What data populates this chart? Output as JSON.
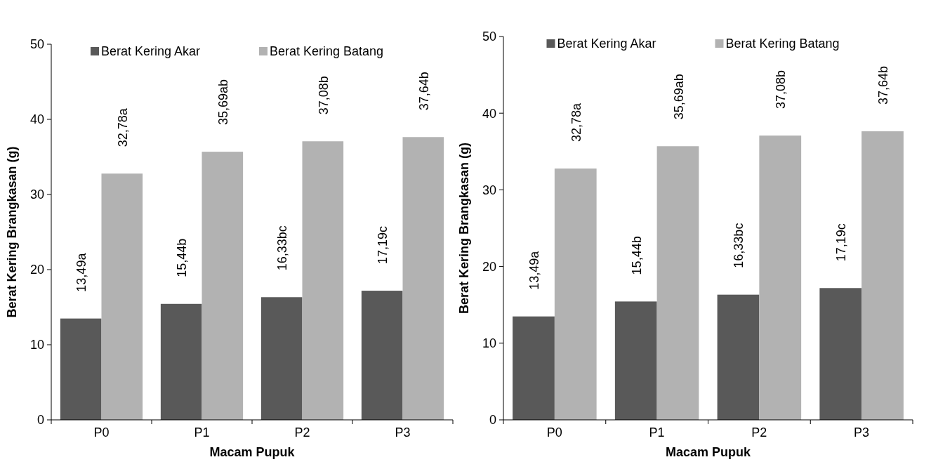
{
  "chart_data": [
    {
      "type": "bar",
      "xlabel": "Macam Pupuk",
      "ylabel": "Berat Kering Brangkasan (g)",
      "categories": [
        "P0",
        "P1",
        "P2",
        "P3"
      ],
      "ylim": [
        0,
        50
      ],
      "yticks": [
        0,
        10,
        20,
        30,
        40,
        50
      ],
      "grid": false,
      "legend": "top",
      "series": [
        {
          "name": "Berat Kering Akar",
          "color": "#595959",
          "values": [
            13.49,
            15.44,
            16.33,
            17.19
          ],
          "value_labels": [
            "13,49a",
            "15,44b",
            "16,33bc",
            "17,19c"
          ]
        },
        {
          "name": "Berat Kering Batang",
          "color": "#b2b2b2",
          "values": [
            32.78,
            35.69,
            37.08,
            37.64
          ],
          "value_labels": [
            "32,78a",
            "35,69ab",
            "37,08b",
            "37,64b"
          ]
        }
      ]
    },
    {
      "type": "bar",
      "xlabel": "Macam Pupuk",
      "ylabel": "Berat Kering Brangkasan (g)",
      "categories": [
        "P0",
        "P1",
        "P2",
        "P3"
      ],
      "ylim": [
        0,
        50
      ],
      "yticks": [
        0,
        10,
        20,
        30,
        40,
        50
      ],
      "grid": false,
      "legend": "top",
      "series": [
        {
          "name": "Berat Kering Akar",
          "color": "#595959",
          "values": [
            13.49,
            15.44,
            16.33,
            17.19
          ],
          "value_labels": [
            "13,49a",
            "15,44b",
            "16,33bc",
            "17,19c"
          ]
        },
        {
          "name": "Berat Kering Batang",
          "color": "#b2b2b2",
          "values": [
            32.78,
            35.69,
            37.08,
            37.64
          ],
          "value_labels": [
            "32,78a",
            "35,69ab",
            "37,08b",
            "37,64b"
          ]
        }
      ]
    }
  ]
}
